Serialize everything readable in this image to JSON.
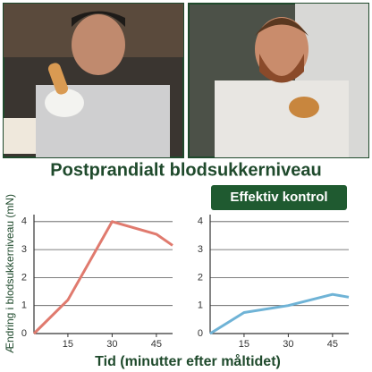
{
  "title": "Postprandialt blodsukkerniveau",
  "y_label": "Ændring i blodsukkerniveau (mN)",
  "x_label": "Tid (minutter efter måltidet)",
  "chart_data": [
    {
      "type": "line",
      "x": [
        3.5,
        15,
        30,
        45,
        50.5
      ],
      "series": [
        {
          "color": "#e07a6e",
          "values": [
            0,
            1.2,
            4,
            3.55,
            3.15
          ]
        }
      ],
      "xlim": [
        3.5,
        50.5
      ],
      "ylim": [
        0,
        4.25
      ],
      "xticks": [
        15,
        30,
        45
      ],
      "yticks": [
        0,
        1,
        2,
        3,
        4
      ],
      "grid": true
    },
    {
      "type": "line",
      "annotation": "Effektiv kontrol",
      "x": [
        3.5,
        15,
        30,
        45,
        50.5
      ],
      "series": [
        {
          "color": "#6fb3d6",
          "values": [
            0,
            0.75,
            1,
            1.4,
            1.3
          ]
        }
      ],
      "xlim": [
        3.5,
        50.5
      ],
      "ylim": [
        0,
        4.25
      ],
      "xticks": [
        15,
        30,
        45
      ],
      "yticks": [
        0,
        1,
        2,
        3,
        4
      ],
      "grid": true
    }
  ]
}
